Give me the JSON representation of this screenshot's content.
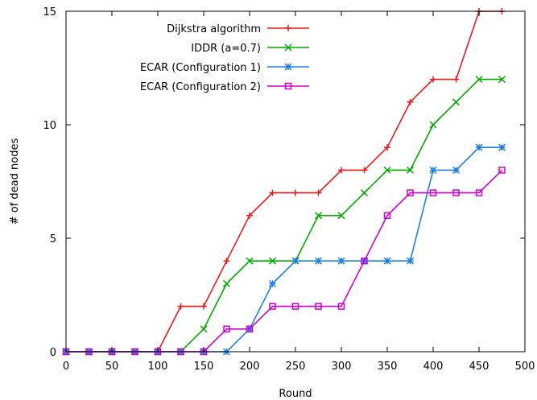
{
  "chart_data": {
    "type": "line",
    "xlabel": "Round",
    "ylabel": "# of dead nodes",
    "xlim": [
      0,
      500
    ],
    "ylim": [
      0,
      15
    ],
    "xticks": [
      0,
      50,
      100,
      150,
      200,
      250,
      300,
      350,
      400,
      450,
      500
    ],
    "yticks": [
      0,
      5,
      10,
      15
    ],
    "grid": false,
    "legend_position": "top-right",
    "x": [
      0,
      25,
      50,
      75,
      100,
      125,
      150,
      175,
      200,
      225,
      250,
      275,
      300,
      325,
      350,
      375,
      400,
      425,
      450,
      475
    ],
    "series": [
      {
        "name": "Dijkstra algorithm",
        "color": "#e41a1c",
        "marker": "plus",
        "values": [
          0,
          0,
          0,
          0,
          0,
          2,
          2,
          4,
          6,
          7,
          7,
          7,
          8,
          8,
          9,
          11,
          12,
          12,
          15,
          15
        ]
      },
      {
        "name": "IDDR (a=0.7)",
        "color": "#00aa00",
        "marker": "cross",
        "values": [
          0,
          0,
          0,
          0,
          0,
          0,
          1,
          3,
          4,
          4,
          4,
          6,
          6,
          7,
          8,
          8,
          10,
          11,
          12,
          12
        ]
      },
      {
        "name": "ECAR (Configuration 1)",
        "color": "#1e7fe0",
        "marker": "star",
        "values": [
          0,
          0,
          0,
          0,
          0,
          0,
          0,
          0,
          1,
          3,
          4,
          4,
          4,
          4,
          4,
          4,
          8,
          8,
          9,
          9
        ]
      },
      {
        "name": "ECAR (Configuration 2)",
        "color": "#cc00cc",
        "marker": "square",
        "values": [
          0,
          0,
          0,
          0,
          0,
          0,
          0,
          1,
          1,
          2,
          2,
          2,
          2,
          4,
          6,
          7,
          7,
          7,
          7,
          8
        ]
      }
    ]
  }
}
